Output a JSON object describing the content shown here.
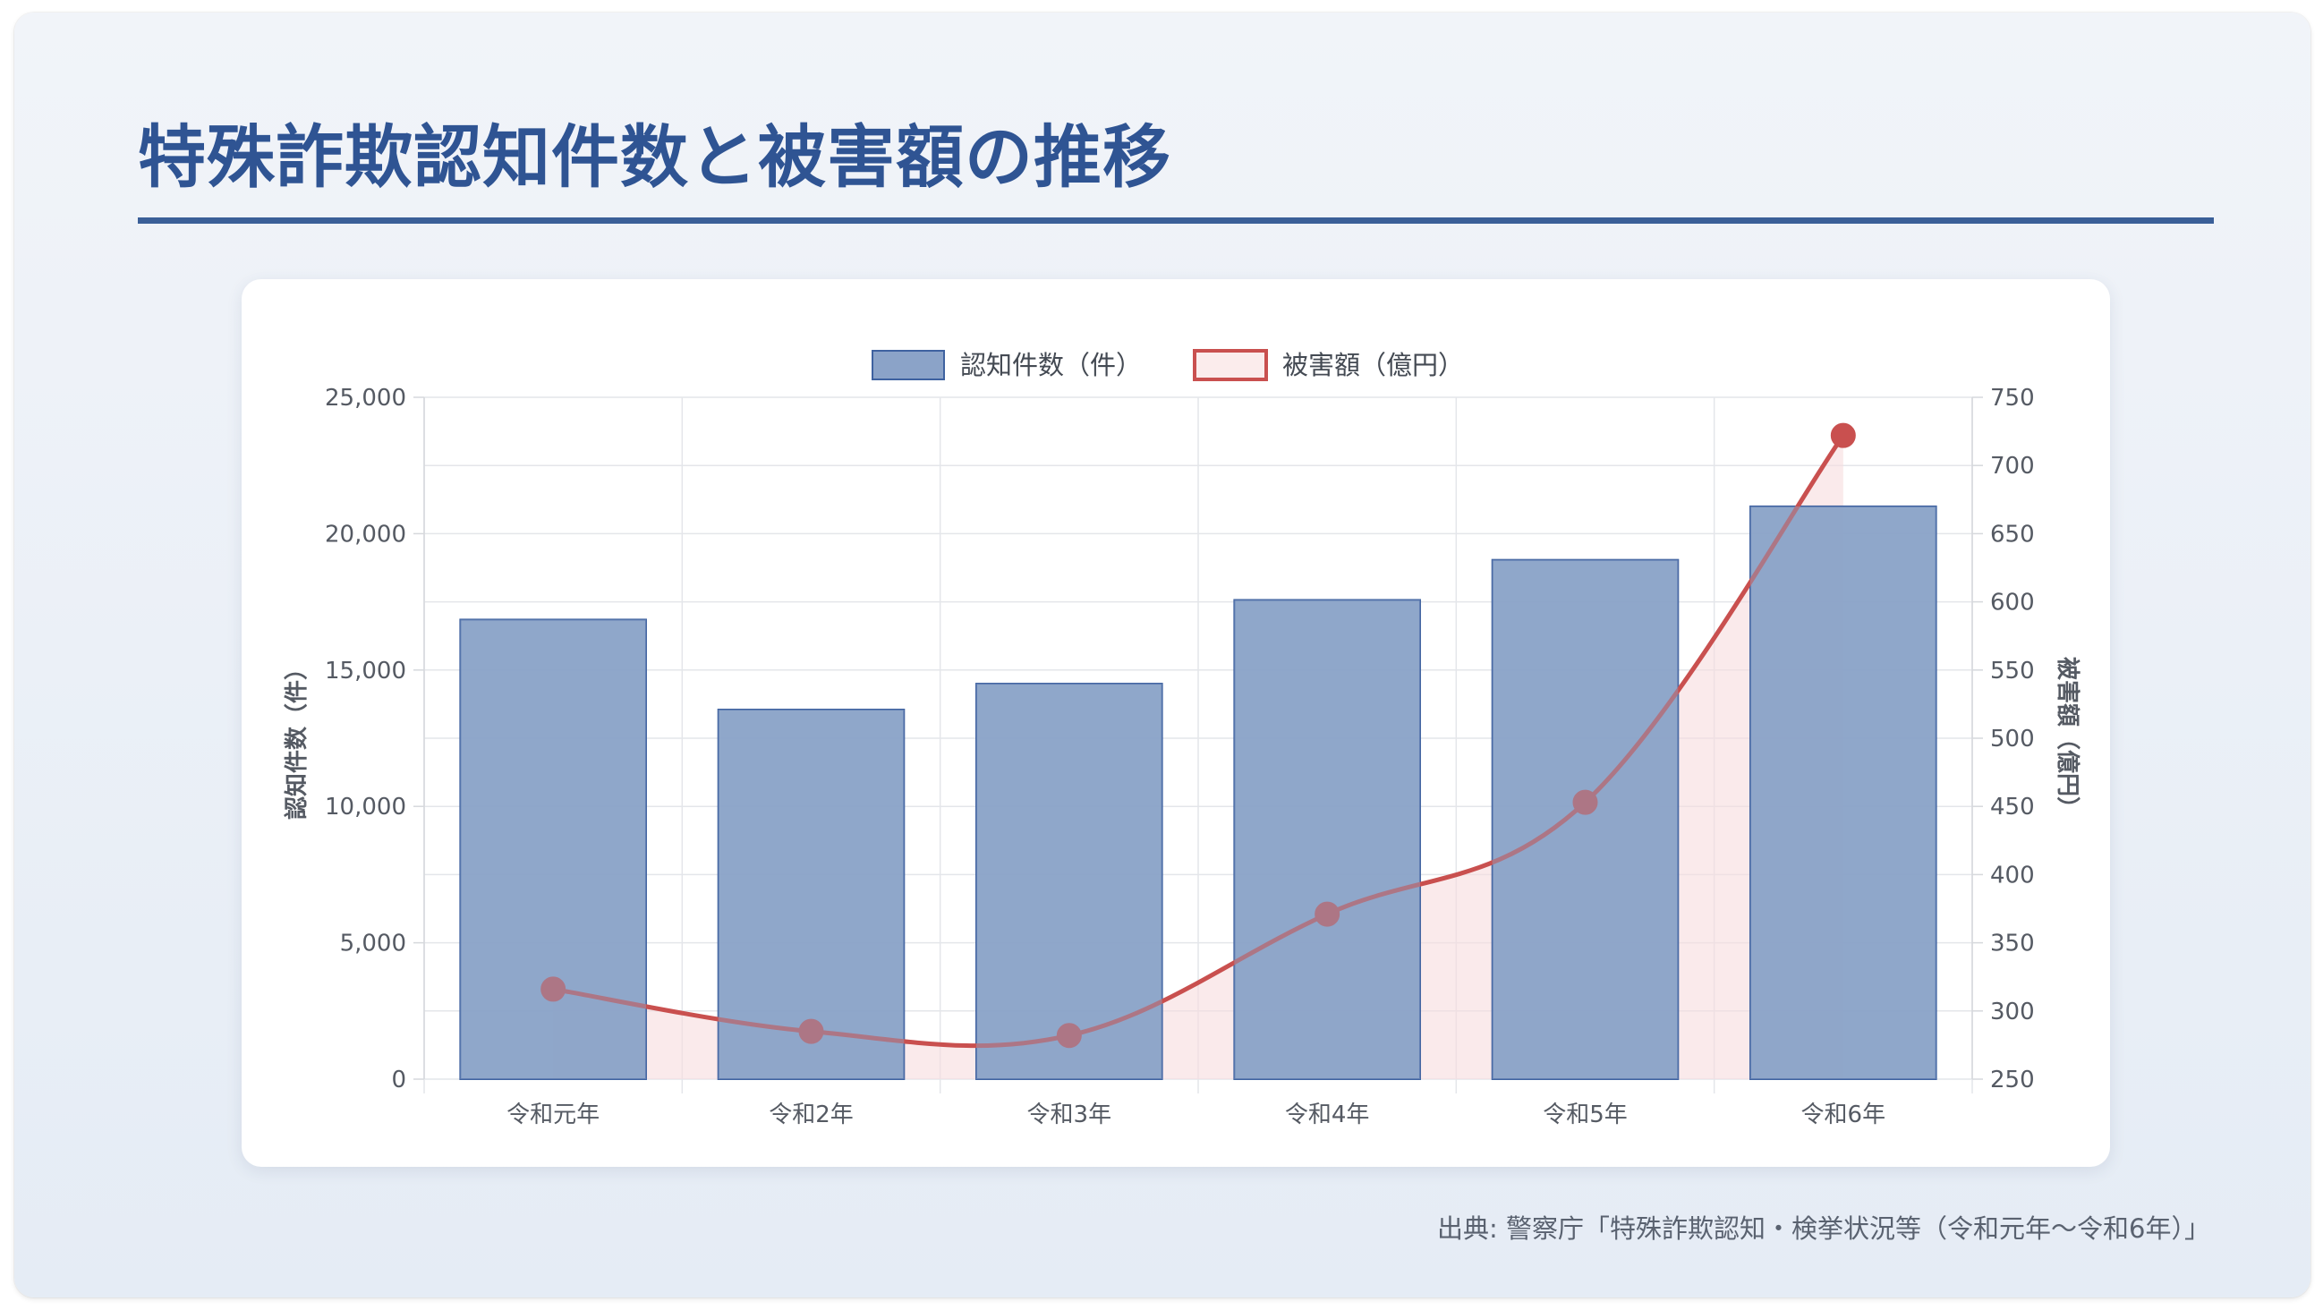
{
  "title": "特殊詐欺認知件数と被害額の推移",
  "source": "出典: 警察庁「特殊詐欺認知・検挙状況等（令和元年〜令和6年）」",
  "colors": {
    "title": "#2f5493",
    "bar_fill": "#8ba3c8",
    "bar_stroke": "#3f62a0",
    "line": "#c9504f",
    "area": "#f6dcdd"
  },
  "chart_data": {
    "type": "bar",
    "categories": [
      "令和元年",
      "令和2年",
      "令和3年",
      "令和4年",
      "令和5年",
      "令和6年"
    ],
    "series": [
      {
        "name": "認知件数（件）",
        "type": "bar",
        "axis": "left",
        "values": [
          16850,
          13550,
          14500,
          17570,
          19040,
          21000
        ]
      },
      {
        "name": "被害額（億円）",
        "type": "line",
        "axis": "right",
        "fill": true,
        "values": [
          316,
          285,
          282,
          371,
          453,
          722
        ]
      }
    ],
    "ylabel_left": "認知件数（件）",
    "ylabel_right": "被害額（億円）",
    "ylim_left": [
      0,
      25000
    ],
    "ylim_right": [
      250,
      750
    ],
    "yticks_left": [
      "0",
      "5,000",
      "10,000",
      "15,000",
      "20,000",
      "25,000"
    ],
    "yticks_right": [
      "250",
      "300",
      "350",
      "400",
      "450",
      "500",
      "550",
      "600",
      "650",
      "700",
      "750"
    ],
    "grid": true,
    "legend": "top-center"
  }
}
